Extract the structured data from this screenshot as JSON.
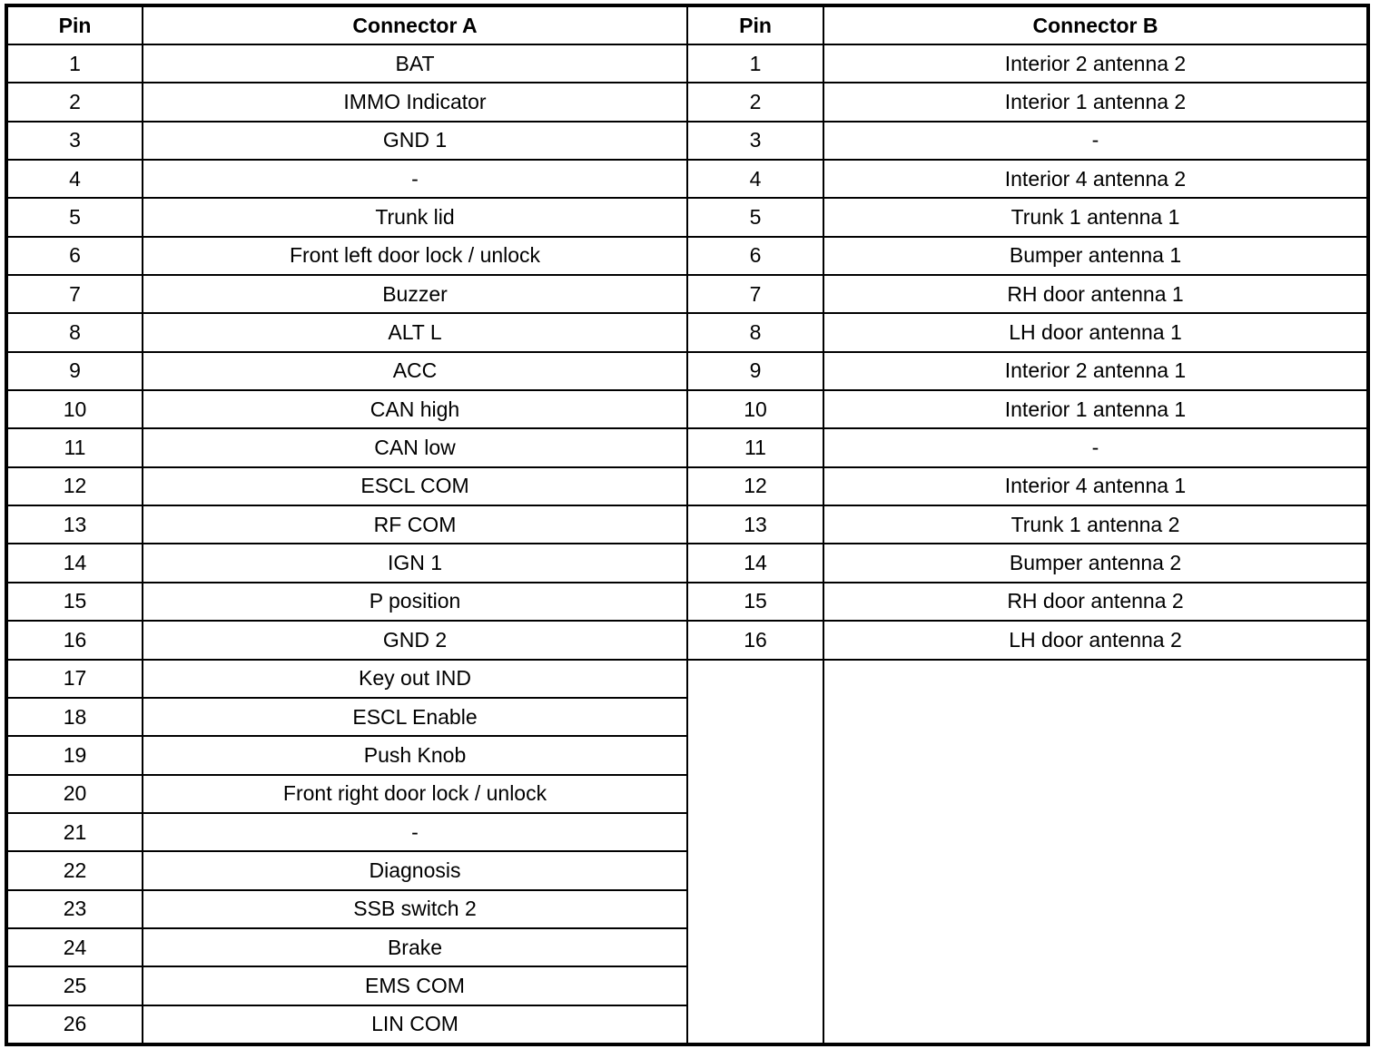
{
  "headers": {
    "pin_a": "Pin",
    "connector_a": "Connector A",
    "pin_b": "Pin",
    "connector_b": "Connector B"
  },
  "connector_a": [
    {
      "pin": "1",
      "name": "BAT"
    },
    {
      "pin": "2",
      "name": "IMMO Indicator"
    },
    {
      "pin": "3",
      "name": "GND 1"
    },
    {
      "pin": "4",
      "name": "-"
    },
    {
      "pin": "5",
      "name": "Trunk lid"
    },
    {
      "pin": "6",
      "name": "Front left door lock / unlock"
    },
    {
      "pin": "7",
      "name": "Buzzer"
    },
    {
      "pin": "8",
      "name": "ALT L"
    },
    {
      "pin": "9",
      "name": "ACC"
    },
    {
      "pin": "10",
      "name": "CAN high"
    },
    {
      "pin": "11",
      "name": "CAN low"
    },
    {
      "pin": "12",
      "name": "ESCL COM"
    },
    {
      "pin": "13",
      "name": "RF COM"
    },
    {
      "pin": "14",
      "name": "IGN 1"
    },
    {
      "pin": "15",
      "name": "P position"
    },
    {
      "pin": "16",
      "name": "GND 2"
    },
    {
      "pin": "17",
      "name": "Key out IND"
    },
    {
      "pin": "18",
      "name": "ESCL Enable"
    },
    {
      "pin": "19",
      "name": "Push Knob"
    },
    {
      "pin": "20",
      "name": "Front right door lock / unlock"
    },
    {
      "pin": "21",
      "name": "-"
    },
    {
      "pin": "22",
      "name": "Diagnosis"
    },
    {
      "pin": "23",
      "name": "SSB switch 2"
    },
    {
      "pin": "24",
      "name": "Brake"
    },
    {
      "pin": "25",
      "name": "EMS COM"
    },
    {
      "pin": "26",
      "name": "LIN COM"
    }
  ],
  "connector_b": [
    {
      "pin": "1",
      "name": "Interior 2 antenna 2"
    },
    {
      "pin": "2",
      "name": "Interior 1 antenna 2"
    },
    {
      "pin": "3",
      "name": "-"
    },
    {
      "pin": "4",
      "name": "Interior 4 antenna 2"
    },
    {
      "pin": "5",
      "name": "Trunk 1 antenna 1"
    },
    {
      "pin": "6",
      "name": "Bumper antenna 1"
    },
    {
      "pin": "7",
      "name": "RH door antenna 1"
    },
    {
      "pin": "8",
      "name": "LH door antenna 1"
    },
    {
      "pin": "9",
      "name": "Interior 2 antenna 1"
    },
    {
      "pin": "10",
      "name": "Interior 1 antenna 1"
    },
    {
      "pin": "11",
      "name": "-"
    },
    {
      "pin": "12",
      "name": "Interior 4 antenna 1"
    },
    {
      "pin": "13",
      "name": "Trunk 1 antenna 2"
    },
    {
      "pin": "14",
      "name": "Bumper antenna 2"
    },
    {
      "pin": "15",
      "name": "RH door antenna 2"
    },
    {
      "pin": "16",
      "name": "LH door antenna 2"
    }
  ]
}
